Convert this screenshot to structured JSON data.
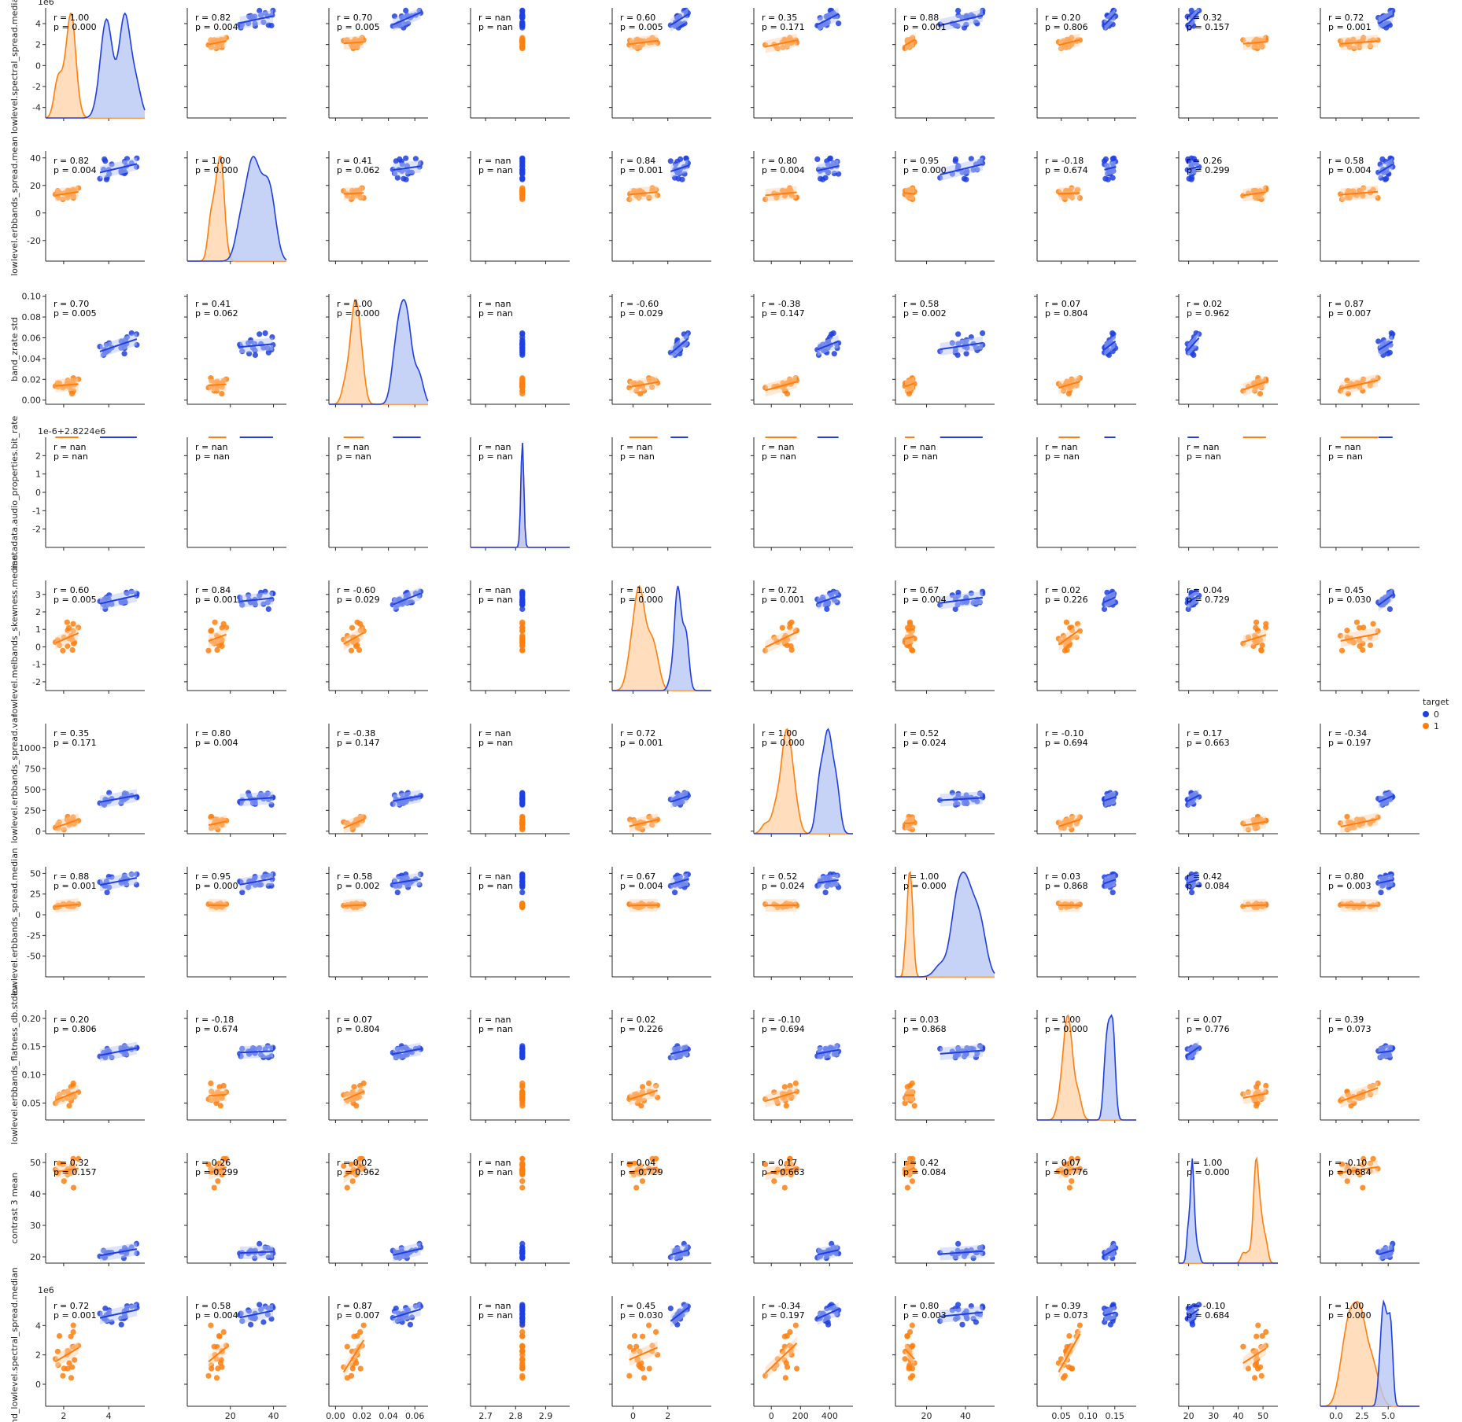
{
  "colors": {
    "0": "#1f3fe0",
    "1": "#ff7f0e",
    "fill0": "#b9c7f5",
    "fill1": "#ffd4ad",
    "axis": "#262626"
  },
  "legend": {
    "title": "target",
    "entries": [
      {
        "label": "0",
        "color": "#1f3fe0"
      },
      {
        "label": "1",
        "color": "#ff7f0e"
      }
    ]
  },
  "chart_data": {
    "type": "scatter",
    "subtype": "pairplot with kde diagonal and per-group regression lines",
    "variables": [
      "lowlevel.spectral_spread.median",
      "lowlevel.erbbands_spread.mean",
      "band_zrate std",
      "metadata.audio_properties.bit_rate",
      "lowlevel.melbands_skewness.median",
      "lowlevel.erbbands_spread.var",
      "lowlevel.erbbands_spread.median",
      "lowlevel.erbbands_flatness_db.stdev",
      "contrast 3 mean",
      "band_lowlevel.spectral_spread.median"
    ],
    "axes": [
      {
        "lim": [
          -5000000.0,
          5500000.0
        ],
        "ticks": [
          -4000000.0,
          -2000000.0,
          0,
          2000000.0,
          4000000.0
        ],
        "tick_labels": [
          "-4",
          "-2",
          "0",
          "2",
          "4"
        ],
        "offset": "1e6",
        "x_ticks": [
          2000000.0,
          4000000.0
        ],
        "x_tick_labels": [
          "2",
          "4"
        ],
        "xlim": [
          1200000.0,
          5600000.0
        ]
      },
      {
        "lim": [
          -35,
          45
        ],
        "ticks": [
          -20,
          0,
          20,
          40
        ],
        "tick_labels": [
          "-20",
          "0",
          "20",
          "40"
        ],
        "offset": "",
        "x_ticks": [
          20,
          40
        ],
        "x_tick_labels": [
          "20",
          "40"
        ],
        "xlim": [
          0,
          46
        ]
      },
      {
        "lim": [
          -0.004,
          0.102
        ],
        "ticks": [
          0.0,
          0.02,
          0.04,
          0.06,
          0.08,
          0.1
        ],
        "tick_labels": [
          "0.00",
          "0.02",
          "0.04",
          "0.06",
          "0.08",
          "0.10"
        ],
        "offset": "",
        "x_ticks": [
          0.0,
          0.02,
          0.04,
          0.06
        ],
        "x_tick_labels": [
          "0.00",
          "0.02",
          "0.04",
          "0.06"
        ],
        "xlim": [
          -0.005,
          0.07
        ]
      },
      {
        "lim": [
          -3,
          3
        ],
        "ticks": [
          -2,
          -1,
          0,
          1,
          2
        ],
        "tick_labels": [
          "-2",
          "-1",
          "0",
          "1",
          "2"
        ],
        "offset": "1e-6+2.8224e6",
        "x_ticks": [
          2700000.0,
          2800000.0,
          2900000.0
        ],
        "x_tick_labels": [
          "2.7",
          "2.8",
          "2.9"
        ],
        "x_offset": "1e6",
        "xlim": [
          2650000.0,
          2980000.0
        ]
      },
      {
        "lim": [
          -2.5,
          3.8
        ],
        "ticks": [
          -2,
          -1,
          0,
          1,
          2,
          3
        ],
        "tick_labels": [
          "-2",
          "-1",
          "0",
          "1",
          "2",
          "3"
        ],
        "offset": "",
        "x_ticks": [
          0,
          2
        ],
        "x_tick_labels": [
          "0",
          "2"
        ],
        "xlim": [
          -1.2,
          4.5
        ]
      },
      {
        "lim": [
          -30,
          1290
        ],
        "ticks": [
          0,
          250,
          500,
          750,
          1000
        ],
        "tick_labels": [
          "0",
          "250",
          "500",
          "750",
          "1000"
        ],
        "offset": "",
        "x_ticks": [
          0,
          200,
          400
        ],
        "x_tick_labels": [
          "0",
          "200",
          "400"
        ],
        "xlim": [
          -120,
          560
        ]
      },
      {
        "lim": [
          -75,
          58
        ],
        "ticks": [
          -50,
          -25,
          0,
          25,
          50
        ],
        "tick_labels": [
          "-50",
          "-25",
          "0",
          "25",
          "50"
        ],
        "offset": "",
        "x_ticks": [
          20,
          40
        ],
        "x_tick_labels": [
          "20",
          "40"
        ],
        "xlim": [
          4,
          55
        ]
      },
      {
        "lim": [
          0.02,
          0.215
        ],
        "ticks": [
          0.05,
          0.1,
          0.15,
          0.2
        ],
        "tick_labels": [
          "0.05",
          "0.10",
          "0.15",
          "0.20"
        ],
        "offset": "",
        "x_ticks": [
          0.05,
          0.1,
          0.15
        ],
        "x_tick_labels": [
          "0.05",
          "0.10",
          "0.15"
        ],
        "xlim": [
          0.005,
          0.19
        ]
      },
      {
        "lim": [
          18,
          53
        ],
        "ticks": [
          20,
          30,
          40,
          50
        ],
        "tick_labels": [
          "20",
          "30",
          "40",
          "50"
        ],
        "offset": "",
        "x_ticks": [
          20,
          30,
          40,
          50
        ],
        "x_tick_labels": [
          "20",
          "30",
          "40",
          "50"
        ],
        "xlim": [
          16,
          56
        ]
      },
      {
        "lim": [
          -1500000.0,
          6000000.0
        ],
        "ticks": [
          0,
          2000000.0,
          4000000.0
        ],
        "tick_labels": [
          "0",
          "2",
          "4"
        ],
        "offset": "1e6",
        "x_ticks": [
          0,
          2500000.0,
          5000000.0
        ],
        "x_tick_labels": [
          "0.0",
          "2.5",
          "5.0"
        ],
        "xlim": [
          -1500000.0,
          8000000.0
        ]
      }
    ],
    "groups": {
      "0": {
        "centers": [
          4300000.0,
          32,
          0.051,
          2822400,
          2.7,
          390,
          39,
          0.141,
          21.5,
          4700000.0
        ],
        "spreads": [
          450000.0,
          5,
          0.006,
          0,
          0.3,
          45,
          6,
          0.008,
          1.2,
          350000.0
        ]
      },
      "1": {
        "centers": [
          2200000.0,
          14,
          0.014,
          2822400,
          0.5,
          85,
          11,
          0.068,
          48,
          2200000.0
        ],
        "spreads": [
          300000.0,
          2.5,
          0.005,
          0,
          0.5,
          55,
          1.5,
          0.012,
          1.8,
          1000000.0
        ]
      }
    },
    "annotations": {
      "lower": [
        [
          "1.00|0.000",
          "0.82|0.004",
          "0.70|0.005",
          "nan|nan",
          "0.60|0.005",
          "0.35|0.171",
          "0.88|0.001",
          "0.20|0.806",
          "0.32|0.157",
          "0.72|0.001"
        ],
        [
          "0.82|0.004",
          "1.00|0.000",
          "0.41|0.062",
          "nan|nan",
          "0.84|0.001",
          "0.80|0.004",
          "0.95|0.000",
          "-0.18|0.674",
          "0.26|0.299",
          "0.58|0.004"
        ],
        [
          "0.70|0.005",
          "0.41|0.062",
          "1.00|0.000",
          "nan|nan",
          "-0.60|0.029",
          "-0.38|0.147",
          "0.58|0.002",
          "0.07|0.804",
          "0.02|0.962",
          "0.87|0.007"
        ],
        [
          "nan|nan",
          "nan|nan",
          "nan|nan",
          "nan|nan",
          "nan|nan",
          "nan|nan",
          "nan|nan",
          "nan|nan",
          "nan|nan",
          "nan|nan"
        ],
        [
          "0.60|0.005",
          "0.84|0.001",
          "-0.60|0.029",
          "nan|nan",
          "1.00|0.000",
          "0.72|0.001",
          "0.67|0.004",
          "0.02|0.226",
          "0.04|0.729",
          "0.45|0.030"
        ],
        [
          "0.35|0.171",
          "0.80|0.004",
          "-0.38|0.147",
          "nan|nan",
          "0.72|0.001",
          "1.00|0.000",
          "0.52|0.024",
          "-0.10|0.694",
          "0.17|0.663",
          "-0.34|0.197"
        ],
        [
          "0.88|0.001",
          "0.95|0.000",
          "0.58|0.002",
          "nan|nan",
          "0.67|0.004",
          "0.52|0.024",
          "1.00|0.000",
          "0.03|0.868",
          "0.42|0.084",
          "0.80|0.003"
        ],
        [
          "0.20|0.806",
          "-0.18|0.674",
          "0.07|0.804",
          "nan|nan",
          "0.02|0.226",
          "-0.10|0.694",
          "0.03|0.868",
          "1.00|0.000",
          "0.07|0.776",
          "0.39|0.073"
        ],
        [
          "0.32|0.157",
          "0.26|0.299",
          "0.02|0.962",
          "nan|nan",
          "0.04|0.729",
          "0.17|0.663",
          "0.42|0.084",
          "0.07|0.776",
          "1.00|0.000",
          "-0.10|0.684"
        ],
        [
          "0.72|0.001",
          "0.58|0.004",
          "0.87|0.007",
          "nan|nan",
          "0.45|0.030",
          "-0.34|0.197",
          "0.80|0.003",
          "0.39|0.073",
          "-0.10|0.684",
          "1.00|0.000"
        ]
      ],
      "r_prefix": "r = ",
      "p_prefix": "p = "
    },
    "diagonal": "kde",
    "grid": false,
    "legend_placement": "right-center"
  }
}
